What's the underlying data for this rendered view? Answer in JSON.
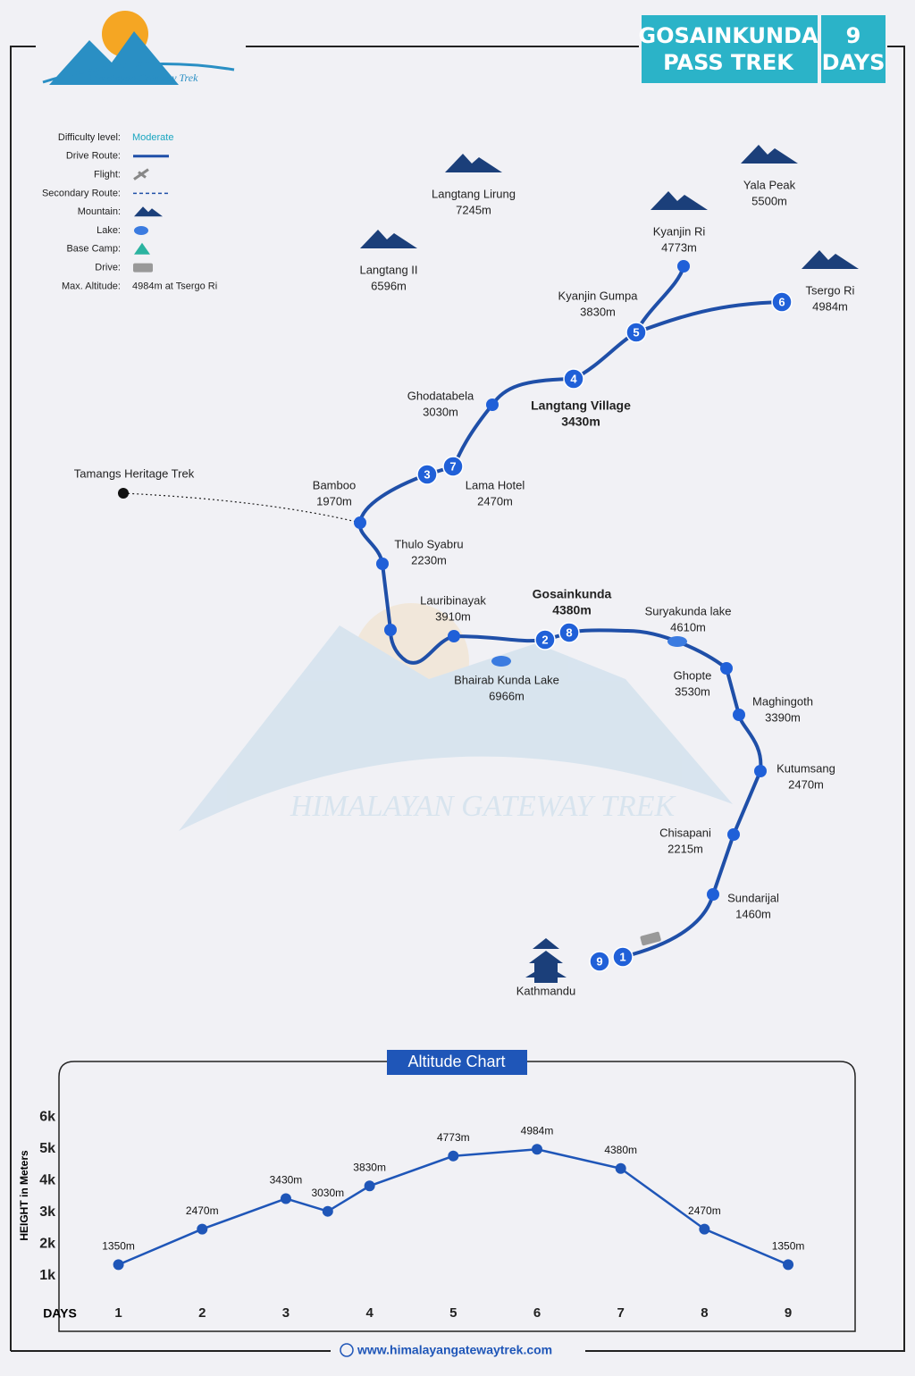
{
  "header": {
    "logo": "Himalayan Gateway Trek",
    "title": "GOSAINKUNDA PASS TREK",
    "days": "9 DAYS"
  },
  "legend": [
    {
      "label": "Difficulty level:",
      "value": "Moderate"
    },
    {
      "label": "Drive Route:"
    },
    {
      "label": "Flight:"
    },
    {
      "label": "Secondary Route:"
    },
    {
      "label": "Mountain:"
    },
    {
      "label": "Lake:"
    },
    {
      "label": "Base Camp:"
    },
    {
      "label": "Drive:"
    },
    {
      "label": "Max. Altitude:",
      "value": "4984m at Tsergo Ri"
    }
  ],
  "map": {
    "places": [
      {
        "name": "Langtang Lirung",
        "altitude": "7245m"
      },
      {
        "name": "Yala Peak",
        "altitude": "5500m"
      },
      {
        "name": "Langtang II",
        "altitude": "6596m"
      },
      {
        "name": "Kyanjin Ri",
        "altitude": "4773m"
      },
      {
        "name": "Tsergo Ri",
        "altitude": "4984m"
      },
      {
        "name": "Kyanjin Gumpa",
        "altitude": "3830m"
      },
      {
        "name": "Langtang Village",
        "altitude": "3430m"
      },
      {
        "name": "Ghodatabela",
        "altitude": "3030m"
      },
      {
        "name": "Tamangs Heritage Trek"
      },
      {
        "name": "Bamboo",
        "altitude": "1970m"
      },
      {
        "name": "Lama Hotel",
        "altitude": "2470m"
      },
      {
        "name": "Thulo Syabru",
        "altitude": "2230m"
      },
      {
        "name": "Lauribinayak",
        "altitude": "3910m"
      },
      {
        "name": "Gosainkunda",
        "altitude": "4380m"
      },
      {
        "name": "Suryakunda lake",
        "altitude": "4610m"
      },
      {
        "name": "Bhairab Kunda Lake",
        "altitude": "6966m"
      },
      {
        "name": "Ghopte",
        "altitude": "3530m"
      },
      {
        "name": "Maghingoth",
        "altitude": "3390m"
      },
      {
        "name": "Kutumsang",
        "altitude": "2470m"
      },
      {
        "name": "Chisapani",
        "altitude": "2215m"
      },
      {
        "name": "Sundarijal",
        "altitude": "1460m"
      },
      {
        "name": "Kathmandu"
      }
    ],
    "day_markers": [
      "1",
      "2",
      "3",
      "4",
      "5",
      "6",
      "7",
      "8",
      "9"
    ]
  },
  "chart_data": {
    "type": "line",
    "title": "Altitude Chart",
    "x_label": "DAYS",
    "y_label": "HEIGHT in Meters",
    "color": "#1f56b8",
    "x": [
      1,
      2,
      3,
      3.5,
      4,
      5,
      6,
      7,
      8,
      9
    ],
    "values": [
      1350,
      2470,
      3430,
      3030,
      3830,
      4773,
      4984,
      4380,
      2470,
      1350
    ],
    "value_labels": [
      "1350m",
      "2470m",
      "3430m",
      "3030m",
      "3830m",
      "4773m",
      "4984m",
      "4380m",
      "2470m",
      "1350m"
    ],
    "xlim": [
      0.3,
      9.8
    ],
    "xticks": [
      1,
      2,
      3,
      4,
      5,
      6,
      7,
      8,
      9
    ],
    "ylim": [
      600,
      6400
    ],
    "yticks": [
      {
        "value": 1000,
        "label": "1k"
      },
      {
        "value": 2000,
        "label": "2k"
      },
      {
        "value": 3000,
        "label": "3k"
      },
      {
        "value": 4000,
        "label": "4k"
      },
      {
        "value": 5000,
        "label": "5k"
      },
      {
        "value": 6000,
        "label": "6k"
      }
    ]
  },
  "footer": {
    "url": "www.himalayangatewaytrek.com"
  }
}
